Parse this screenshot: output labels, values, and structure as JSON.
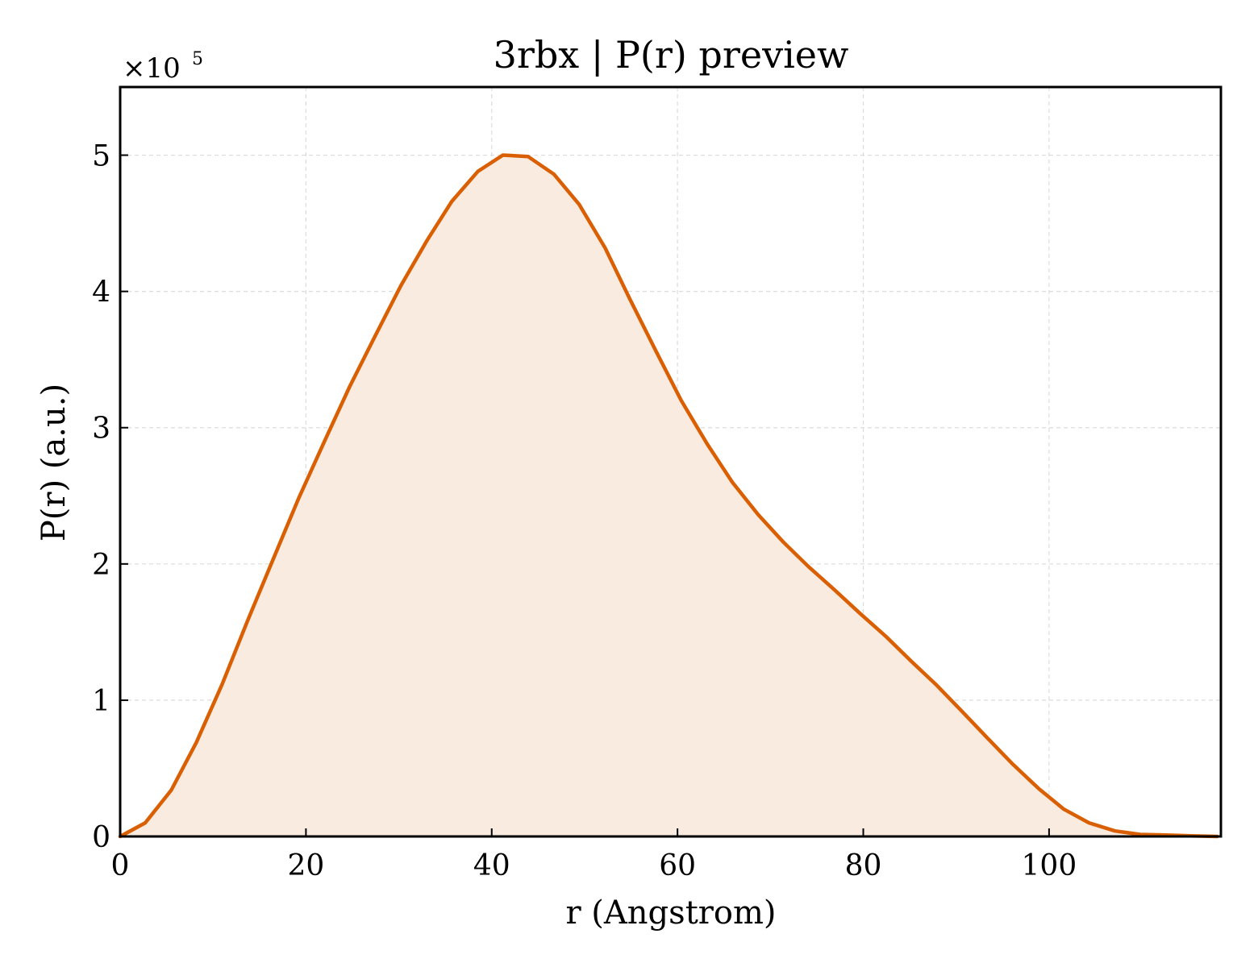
{
  "chart_data": {
    "type": "area",
    "title": "3rbx | P(r) preview",
    "xlabel": "r (Angstrom)",
    "ylabel": "P(r) (a.u.)",
    "y_multiplier_base": "×10",
    "y_multiplier_exp": "5",
    "xlim": [
      0,
      118.5
    ],
    "ylim": [
      0,
      5.5
    ],
    "x_ticks": [
      0,
      20,
      40,
      60,
      80,
      100
    ],
    "x_tick_labels": [
      "0",
      "20",
      "40",
      "60",
      "80",
      "100"
    ],
    "y_ticks": [
      0,
      1,
      2,
      3,
      4,
      5
    ],
    "y_tick_labels": [
      "0",
      "1",
      "2",
      "3",
      "4",
      "5"
    ],
    "grid": true,
    "line_color": "#d95f02",
    "fill_color": "#f9ebe0",
    "x": [
      0,
      2.7,
      5.5,
      8.2,
      11.0,
      13.7,
      16.5,
      19.2,
      22.0,
      24.7,
      27.5,
      30.2,
      33.0,
      35.7,
      38.5,
      41.2,
      43.9,
      46.7,
      49.4,
      52.2,
      54.9,
      57.7,
      60.4,
      63.2,
      65.9,
      68.7,
      71.4,
      74.1,
      76.9,
      79.6,
      82.4,
      85.1,
      87.9,
      90.6,
      93.4,
      96.1,
      98.9,
      101.6,
      104.3,
      107.1,
      109.8,
      112.6,
      115.3,
      118.1
    ],
    "y": [
      0.0,
      0.1,
      0.34,
      0.69,
      1.12,
      1.58,
      2.04,
      2.48,
      2.9,
      3.3,
      3.68,
      4.04,
      4.37,
      4.66,
      4.88,
      5.0,
      4.99,
      4.86,
      4.64,
      4.32,
      3.94,
      3.56,
      3.2,
      2.88,
      2.6,
      2.36,
      2.16,
      1.98,
      1.81,
      1.64,
      1.47,
      1.29,
      1.11,
      0.92,
      0.72,
      0.53,
      0.35,
      0.2,
      0.1,
      0.04,
      0.015,
      0.01,
      0.005,
      0.0
    ]
  }
}
